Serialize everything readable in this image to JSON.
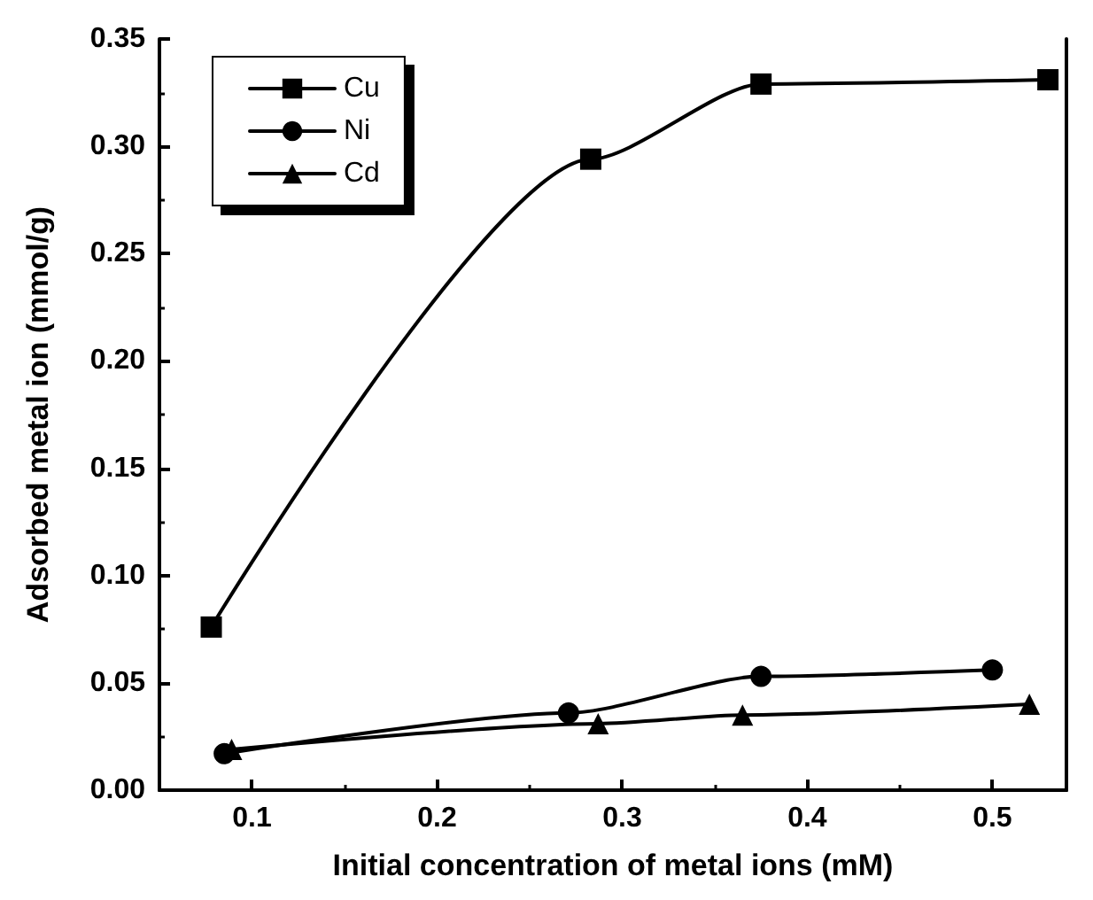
{
  "chart_data": {
    "type": "line",
    "xlabel": "Initial concentration of metal ions (mM)",
    "ylabel": "Adsorbed metal ion (mmol/g)",
    "xlim": [
      0.05,
      0.54
    ],
    "xticks": [
      0.1,
      0.2,
      0.3,
      0.4,
      0.5
    ],
    "ylim": [
      0,
      0.35
    ],
    "yticks": [
      {
        "value": 0,
        "label": "0.00"
      },
      0.05,
      {
        "value": 0.1,
        "label": "0.10"
      },
      0.15,
      {
        "value": 0.2,
        "label": "0.20"
      },
      0.25,
      {
        "value": 0.3,
        "label": "0.30"
      },
      0.35
    ],
    "legend": "top left",
    "grid": false,
    "line_style": "solid",
    "series": [
      {
        "name": "Cu",
        "color": "#000000",
        "marker": "square",
        "x": [
          0.078,
          0.283,
          0.375,
          0.53
        ],
        "values": [
          0.076,
          0.294,
          0.329,
          0.331
        ]
      },
      {
        "name": "Ni",
        "color": "#000000",
        "marker": "circle",
        "x": [
          0.085,
          0.271,
          0.375,
          0.5
        ],
        "values": [
          0.017,
          0.036,
          0.053,
          0.056
        ]
      },
      {
        "name": "Cd",
        "color": "#000000",
        "marker": "triangle",
        "x": [
          0.089,
          0.287,
          0.365,
          0.52
        ],
        "values": [
          0.019,
          0.031,
          0.035,
          0.04
        ]
      }
    ]
  }
}
